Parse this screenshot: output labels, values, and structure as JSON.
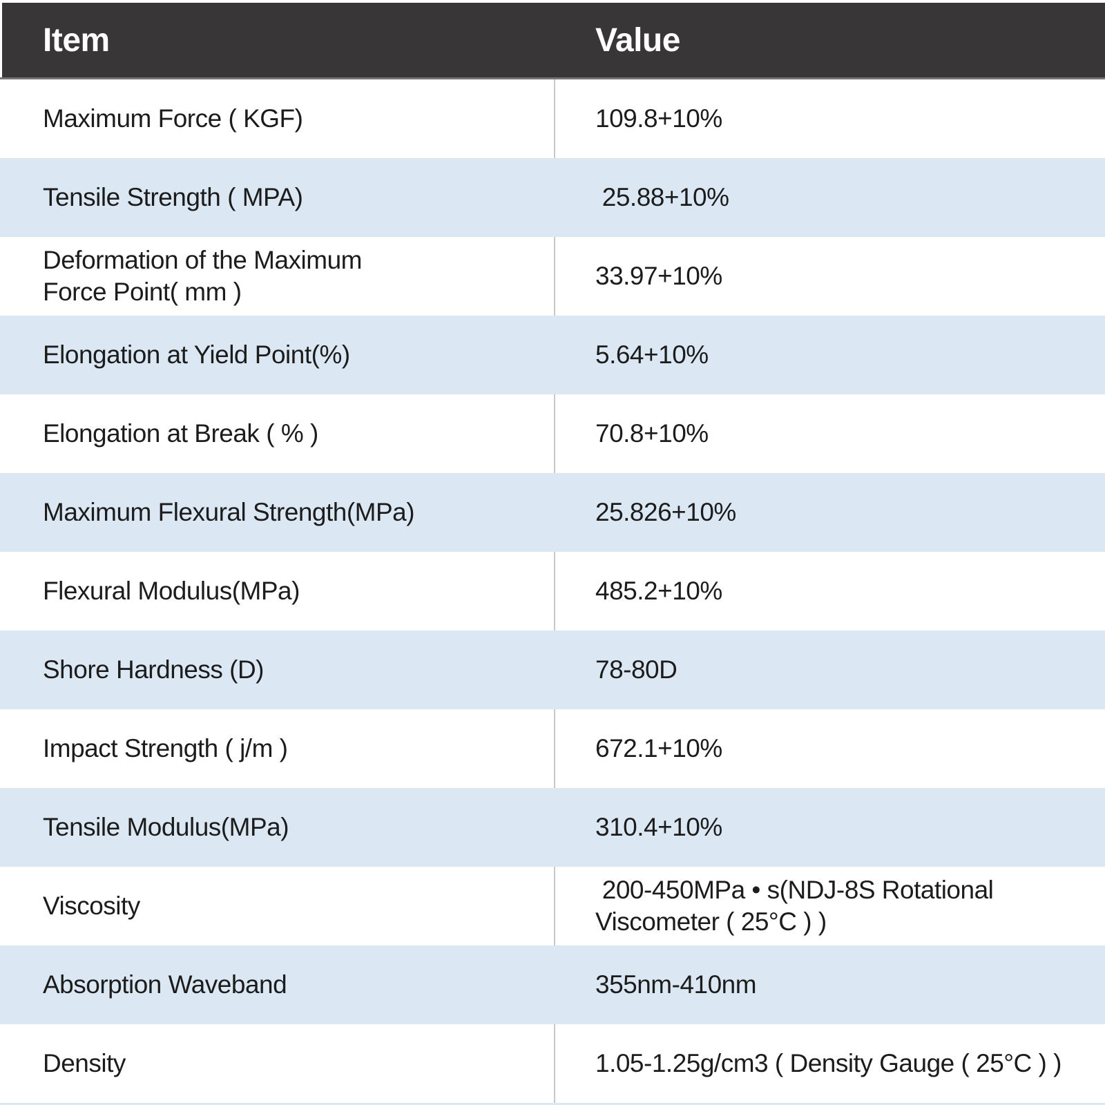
{
  "table": {
    "columns": [
      "Item",
      "Value"
    ],
    "rows": [
      {
        "item": "Maximum Force ( KGF)",
        "value": "109.8+10%"
      },
      {
        "item": "Tensile Strength ( MPA)",
        "value": " 25.88+10%"
      },
      {
        "item": "Deformation of the Maximum\nForce Point( mm )",
        "value": "33.97+10%"
      },
      {
        "item": "Elongation at Yield Point(%)",
        "value": "5.64+10%"
      },
      {
        "item": "Elongation at Break ( % )",
        "value": "70.8+10%"
      },
      {
        "item": "Maximum Flexural Strength(MPa)",
        "value": "25.826+10%"
      },
      {
        "item": "Flexural Modulus(MPa)",
        "value": "485.2+10%"
      },
      {
        "item": "Shore Hardness (D)",
        "value": "78-80D"
      },
      {
        "item": "Impact Strength ( j/m )",
        "value": "672.1+10%"
      },
      {
        "item": "Tensile Modulus(MPa)",
        "value": "310.4+10%"
      },
      {
        "item": "Viscosity",
        "value": " 200-450MPa • s(NDJ-8S Rotational\nViscometer ( 25°C ) )"
      },
      {
        "item": "Absorption Waveband",
        "value": "355nm-410nm"
      },
      {
        "item": "Density",
        "value": "1.05-1.25g/cm3 ( Density Gauge ( 25°C ) )"
      }
    ],
    "colors": {
      "header_bg": "#393637",
      "header_text": "#ffffff",
      "header_underline": "#757374",
      "row_bg": "#ffffff",
      "row_stripe_bg": "#dbe8f4",
      "column_divider": "#c8c8c8",
      "body_text": "#1c1c1c"
    }
  }
}
